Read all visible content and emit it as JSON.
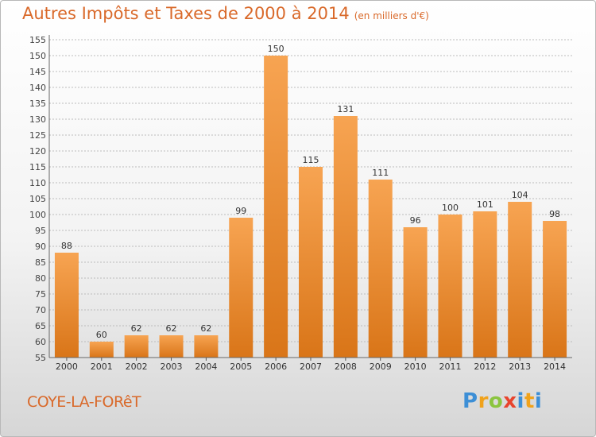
{
  "title": "Autres Impôts et Taxes de 2000 à 2014",
  "subtitle": "(en milliers d'€)",
  "commune": "COYE-LA-FORêT",
  "logo": {
    "letters": [
      "P",
      "r",
      "o",
      "x",
      "i",
      "t",
      "i"
    ]
  },
  "colors": {
    "accent": "#d9692a",
    "bar_top": "#f7a452",
    "bar_bottom": "#d97518",
    "grid": "#bcbcbc"
  },
  "chart_data": {
    "type": "bar",
    "categories": [
      "2000",
      "2001",
      "2002",
      "2003",
      "2004",
      "2005",
      "2006",
      "2007",
      "2008",
      "2009",
      "2010",
      "2011",
      "2012",
      "2013",
      "2014"
    ],
    "values": [
      88,
      60,
      62,
      62,
      62,
      99,
      150,
      115,
      131,
      111,
      96,
      100,
      101,
      104,
      98
    ],
    "ylim": [
      55,
      155
    ],
    "ytick_step": 5,
    "grid": true
  }
}
